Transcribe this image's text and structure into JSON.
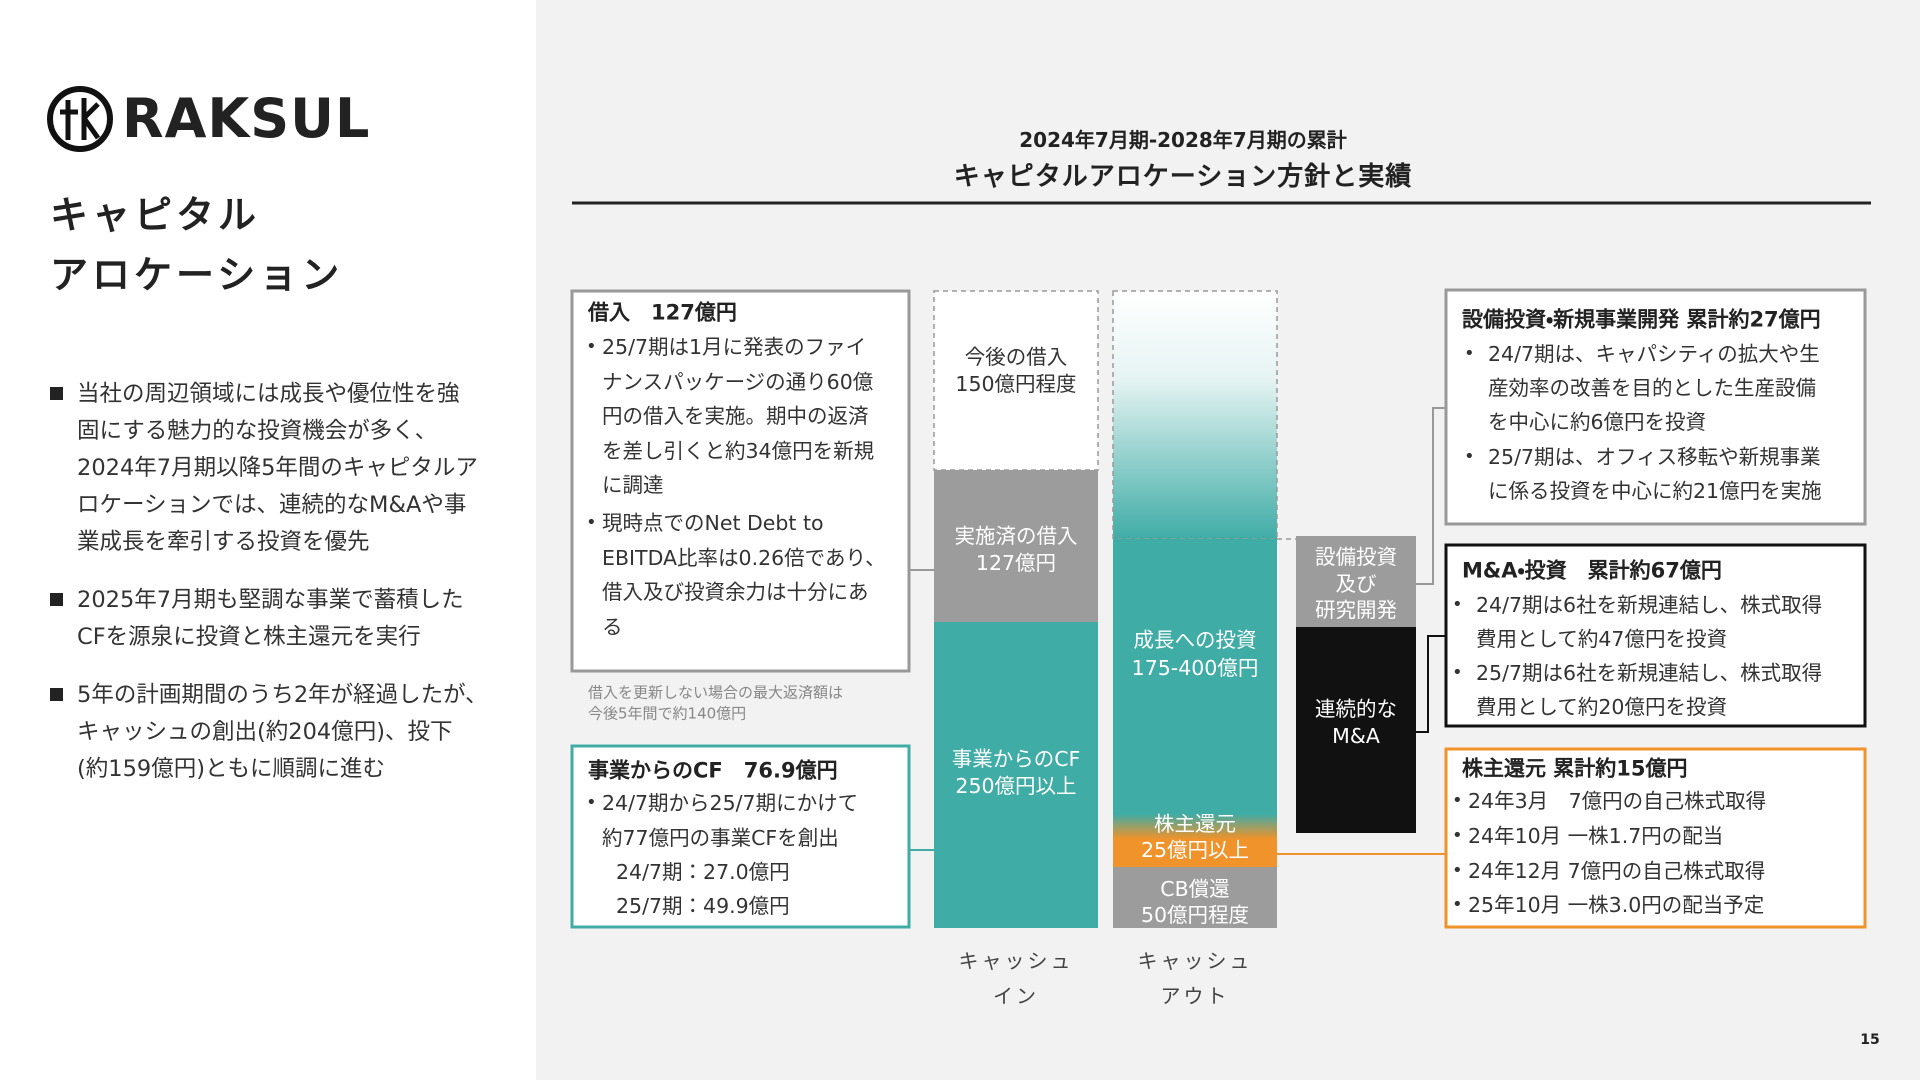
{
  "header": {
    "logo": "RAKSUL",
    "title_lines": [
      "キャピタル",
      "アロケーション"
    ],
    "page_number": "15"
  },
  "bullets": [
    [
      "当社の周辺領域には成長や優位性を強",
      "固にする魅力的な投資機会が多く、",
      "2024年7月期以降5年間のキャピタルア",
      "ロケーションでは、連続的なM&Aや事",
      "業成長を牽引する投資を優先"
    ],
    [
      "2025年7月期も堅調な事業で蓄積した",
      "CFを源泉に投資と株主還元を実行"
    ],
    [
      "5年の計画期間のうち2年が経過したが、",
      "キャッシュの創出(約204億円)、投下",
      "(約159億円)ともに順調に進む"
    ]
  ],
  "slide": {
    "period": "2024年7月期-2028年7月期の累計",
    "title": "キャピタルアロケーション方針と実績"
  },
  "borrowing_box": {
    "title": "借入　127億円",
    "items": [
      [
        "25/7期は1月に発表のファイ",
        "ナンスパッケージの通り60億",
        "円の借入を実施。期中の返済",
        "を差し引くと約34億円を新規",
        "に調達"
      ],
      [
        "現時点でのNet Debt to",
        "EBITDA比率は0.26倍であり、",
        "借入及び投資余力は十分にあ",
        "る"
      ]
    ]
  },
  "note": [
    "借入を更新しない場合の最大返済額は",
    "今後5年間で約140億円"
  ],
  "cf_box": {
    "title": "事業からのCF　76.9億円",
    "items": [
      [
        "24/7期から25/7期にかけて",
        "約77億円の事業CFを創出"
      ]
    ],
    "details": [
      "24/7期：27.0億円",
      "25/7期：49.9億円"
    ]
  },
  "cash_in": {
    "label": [
      "キャッシュ",
      "イン"
    ],
    "blocks": [
      [
        "今後の借入",
        "150億円程度"
      ],
      [
        "実施済の借入",
        "127億円"
      ],
      [
        "事業からのCF",
        "250億円以上"
      ]
    ]
  },
  "cash_out": {
    "label": [
      "キャッシュ",
      "アウト"
    ],
    "blocks": [
      [
        "成長への投資",
        "175-400億円"
      ],
      [
        "株主還元",
        "25億円以上"
      ],
      [
        "CB償還",
        "50億円程度"
      ]
    ]
  },
  "growth_split": [
    [
      "設備投資",
      "及び",
      "研究開発"
    ],
    [
      "連続的な",
      "M&A"
    ]
  ],
  "right_boxes": [
    {
      "title": "設備投資・新規事業開発 累計約27億円",
      "items": [
        [
          "24/7期は、キャパシティの拡大や生",
          "産効率の改善を目的とした生産設備",
          "を中心に約6億円を投資"
        ],
        [
          "25/7期は、オフィス移転や新規事業",
          "に係る投資を中心に約21億円を実施"
        ]
      ]
    },
    {
      "title": "M&A・投資　累計約67億円",
      "items": [
        [
          "24/7期は6社を新規連結し、株式取得",
          "費用として約47億円を投資"
        ],
        [
          "25/7期は6社を新規連結し、株式取得",
          "費用として約20億円を投資"
        ]
      ]
    },
    {
      "title": "株主還元 累計約15億円",
      "items": [
        [
          "24年3月　7億円の自己株式取得"
        ],
        [
          "24年10月 一株1.7円の配当"
        ],
        [
          "24年12月 7億円の自己株式取得"
        ],
        [
          "25年10月 一株3.0円の配当予定"
        ]
      ]
    }
  ]
}
